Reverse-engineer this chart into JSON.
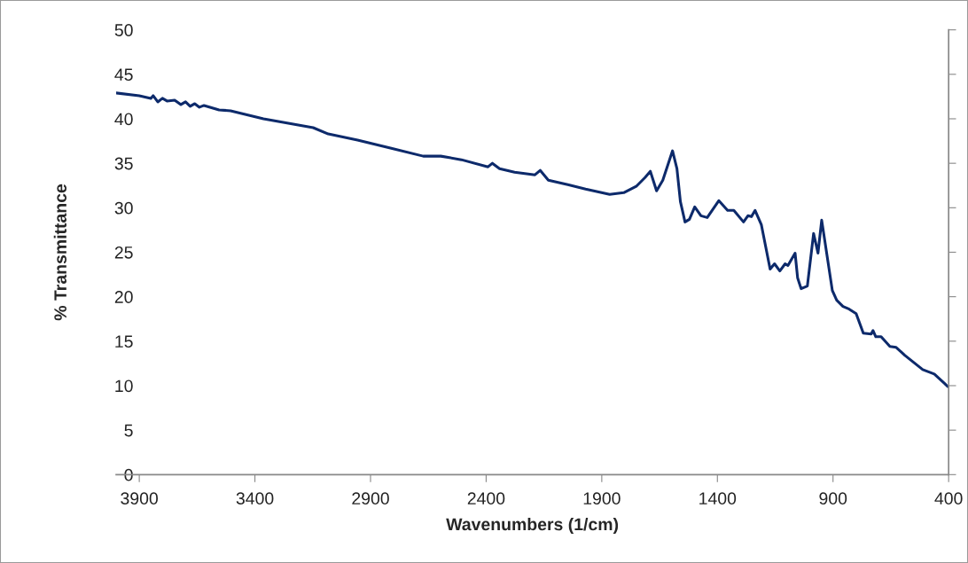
{
  "chart_data": {
    "type": "line",
    "xlabel": "Wavenumbers (1/cm)",
    "ylabel": "% Transmittance",
    "xlim": [
      4000,
      400
    ],
    "xticks": [
      3900,
      3400,
      2900,
      2400,
      1900,
      1400,
      900,
      400
    ],
    "ylim": [
      0,
      50
    ],
    "yticks": [
      0,
      5,
      10,
      15,
      20,
      25,
      30,
      35,
      40,
      45,
      50
    ],
    "grid": false,
    "marker": "none",
    "line_style": "solid",
    "series": [
      {
        "color": "#0d2a6b",
        "x": [
          4000,
          3900,
          3850,
          3840,
          3820,
          3800,
          3780,
          3747,
          3720,
          3700,
          3680,
          3660,
          3640,
          3620,
          3555,
          3505,
          3363,
          3148,
          3083,
          2956,
          2814,
          2672,
          2596,
          2507,
          2392,
          2373,
          2342,
          2277,
          2189,
          2166,
          2131,
          2047,
          1970,
          1866,
          1805,
          1751,
          1713,
          1690,
          1663,
          1636,
          1594,
          1575,
          1560,
          1540,
          1521,
          1498,
          1471,
          1444,
          1394,
          1356,
          1329,
          1287,
          1268,
          1253,
          1237,
          1210,
          1172,
          1153,
          1130,
          1107,
          1095,
          1064,
          1053,
          1038,
          1011,
          984,
          965,
          949,
          903,
          884,
          857,
          830,
          800,
          769,
          735,
          727,
          715,
          692,
          654,
          627,
          589,
          512,
          462,
          416,
          404
        ],
        "values": [
          42.9,
          42.6,
          42.3,
          42.6,
          41.9,
          42.3,
          42.0,
          42.1,
          41.6,
          41.9,
          41.4,
          41.7,
          41.3,
          41.5,
          41.0,
          40.9,
          40.0,
          39.0,
          38.3,
          37.6,
          36.7,
          35.8,
          35.8,
          35.4,
          34.6,
          35.0,
          34.4,
          34.0,
          33.7,
          34.2,
          33.1,
          32.6,
          32.1,
          31.5,
          31.7,
          32.4,
          33.4,
          34.1,
          31.9,
          33.1,
          36.4,
          34.4,
          30.7,
          28.4,
          28.7,
          30.1,
          29.1,
          28.9,
          30.8,
          29.7,
          29.7,
          28.4,
          29.1,
          29.0,
          29.7,
          28.1,
          23.1,
          23.7,
          22.9,
          23.7,
          23.5,
          24.9,
          22.1,
          20.9,
          21.2,
          27.1,
          24.9,
          28.6,
          20.7,
          19.6,
          18.9,
          18.6,
          18.1,
          15.9,
          15.8,
          16.2,
          15.5,
          15.5,
          14.4,
          14.3,
          13.4,
          11.8,
          11.3,
          10.2,
          9.9
        ]
      }
    ]
  }
}
